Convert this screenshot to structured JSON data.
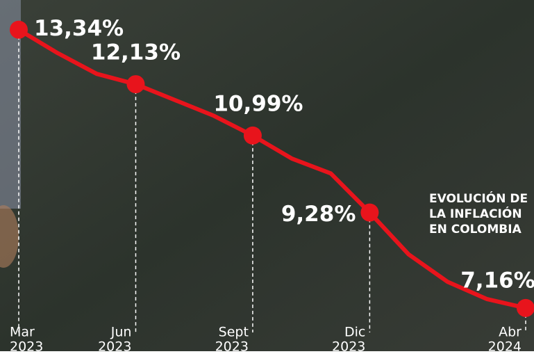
{
  "chart_data": {
    "type": "line",
    "title_lines": [
      "EVOLUCIÓN DE",
      "LA INFLACIÓN",
      "EN COLOMBIA"
    ],
    "categories": [
      "Mar",
      null,
      null,
      "Jun",
      null,
      null,
      "Sept",
      null,
      null,
      "Dic",
      null,
      null,
      null,
      "Abr"
    ],
    "years": [
      "2023",
      null,
      null,
      "2023",
      null,
      null,
      "2023",
      null,
      null,
      "2023",
      null,
      null,
      null,
      "2024"
    ],
    "series": [
      {
        "color": "#e8141c",
        "values": [
          13.34,
          12.82,
          12.36,
          12.13,
          11.78,
          11.43,
          10.99,
          10.48,
          10.15,
          9.28,
          8.35,
          7.74,
          7.36,
          7.16
        ],
        "value_labels": [
          "13,34%",
          null,
          null,
          "12,13%",
          null,
          null,
          "10,99%",
          null,
          null,
          "9,28%",
          null,
          null,
          null,
          "7,16%"
        ]
      }
    ],
    "ylim": [
      6.2,
      14
    ]
  }
}
